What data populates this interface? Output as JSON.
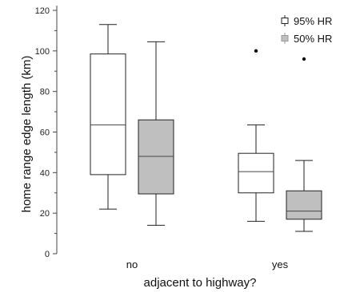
{
  "chart_data": {
    "type": "box",
    "categories": [
      "no",
      "yes"
    ],
    "xlabel": "adjacent to highway?",
    "ylabel": "home range edge length (km)",
    "ylim": [
      0,
      120
    ],
    "yticks": [
      0,
      20,
      40,
      60,
      80,
      100,
      120
    ],
    "grid": false,
    "legend_position": "top-right",
    "series": [
      {
        "name": "95% HR",
        "fill": "#ffffff",
        "boxes": [
          {
            "category": "no",
            "whisker_low": 22,
            "q1": 39,
            "median": 63.5,
            "q3": 98.5,
            "whisker_high": 113,
            "outliers": []
          },
          {
            "category": "yes",
            "whisker_low": 16,
            "q1": 30,
            "median": 40.5,
            "q3": 49.5,
            "whisker_high": 63.5,
            "outliers": [
              100
            ]
          }
        ]
      },
      {
        "name": "50% HR",
        "fill": "#bfbfbf",
        "boxes": [
          {
            "category": "no",
            "whisker_low": 14,
            "q1": 29.5,
            "median": 48,
            "q3": 66,
            "whisker_high": 104.5,
            "outliers": []
          },
          {
            "category": "yes",
            "whisker_low": 11,
            "q1": 17,
            "median": 21,
            "q3": 31,
            "whisker_high": 46,
            "outliers": [
              96
            ]
          }
        ]
      }
    ]
  }
}
